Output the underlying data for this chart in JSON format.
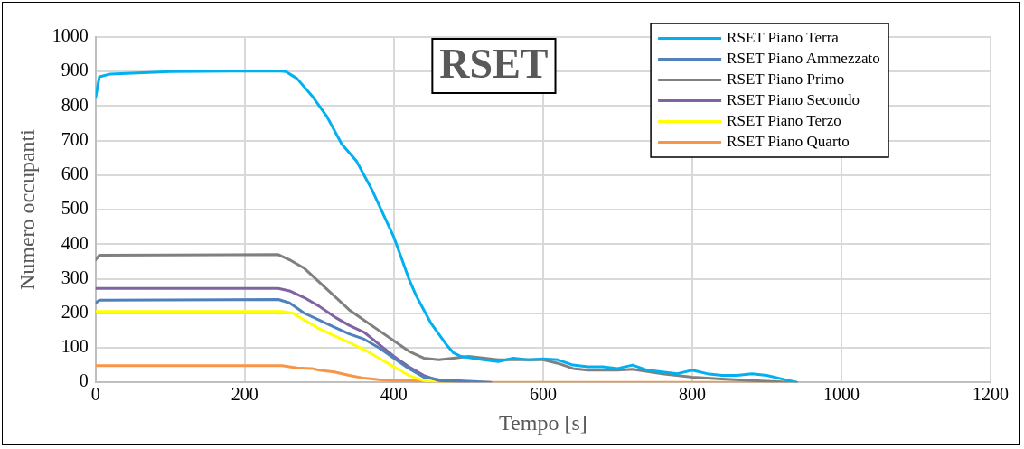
{
  "chart_data": {
    "type": "line",
    "title": "RSET",
    "xlabel": "Tempo [s]",
    "ylabel": "Numero occupanti",
    "xlim": [
      0,
      1200
    ],
    "xticks": [
      0,
      200,
      400,
      600,
      800,
      1000,
      1200
    ],
    "ylim": [
      0,
      1000
    ],
    "yticks": [
      0,
      100,
      200,
      300,
      400,
      500,
      600,
      700,
      800,
      900,
      1000
    ],
    "grid": true,
    "legend": "top right",
    "marker": "none",
    "line_style": "solid",
    "series": [
      {
        "name": "RSET Piano Terra",
        "color": "#00b0f0",
        "x": [
          0,
          5,
          20,
          100,
          245,
          255,
          270,
          290,
          310,
          330,
          350,
          370,
          385,
          400,
          410,
          420,
          430,
          440,
          450,
          460,
          470,
          480,
          490,
          500,
          520,
          540,
          560,
          580,
          600,
          620,
          640,
          660,
          680,
          700,
          720,
          740,
          760,
          780,
          800,
          820,
          840,
          860,
          880,
          900,
          920,
          940
        ],
        "values": [
          825,
          885,
          893,
          900,
          902,
          900,
          880,
          830,
          770,
          690,
          640,
          560,
          490,
          420,
          360,
          300,
          250,
          210,
          170,
          140,
          110,
          85,
          75,
          72,
          65,
          60,
          70,
          65,
          68,
          65,
          50,
          45,
          45,
          40,
          50,
          35,
          30,
          25,
          35,
          25,
          20,
          20,
          25,
          20,
          10,
          0
        ]
      },
      {
        "name": "RSET Piano Ammezzato",
        "color": "#4f81bd",
        "x": [
          0,
          5,
          245,
          260,
          280,
          300,
          320,
          340,
          360,
          380,
          400,
          420,
          440,
          460,
          500,
          530
        ],
        "values": [
          230,
          238,
          240,
          230,
          200,
          180,
          160,
          140,
          125,
          100,
          70,
          40,
          15,
          8,
          3,
          0
        ]
      },
      {
        "name": "RSET Piano Primo",
        "color": "#808080",
        "x": [
          0,
          5,
          245,
          260,
          280,
          300,
          320,
          340,
          360,
          380,
          400,
          420,
          440,
          460,
          480,
          500,
          540,
          560,
          600,
          620,
          640,
          660,
          700,
          720,
          760,
          800,
          840,
          880,
          920,
          940
        ],
        "values": [
          355,
          368,
          370,
          355,
          330,
          290,
          250,
          210,
          180,
          150,
          120,
          90,
          70,
          65,
          70,
          75,
          65,
          65,
          65,
          55,
          40,
          35,
          35,
          38,
          25,
          15,
          10,
          5,
          1,
          0
        ]
      },
      {
        "name": "RSET Piano Secondo",
        "color": "#8064a2",
        "x": [
          0,
          245,
          260,
          280,
          300,
          320,
          340,
          360,
          380,
          400,
          420,
          440,
          460,
          480,
          500
        ],
        "values": [
          272,
          272,
          265,
          245,
          220,
          190,
          165,
          145,
          110,
          75,
          45,
          20,
          5,
          2,
          0
        ]
      },
      {
        "name": "RSET Piano Terzo",
        "color": "#ffff00",
        "x": [
          0,
          250,
          265,
          280,
          300,
          320,
          340,
          360,
          380,
          400,
          420,
          440,
          460,
          480
        ],
        "values": [
          205,
          205,
          200,
          180,
          155,
          135,
          115,
          95,
          70,
          45,
          20,
          5,
          2,
          0
        ]
      },
      {
        "name": "RSET Piano Quarto",
        "color": "#f79646",
        "x": [
          0,
          250,
          270,
          290,
          300,
          320,
          340,
          360,
          380,
          400,
          420,
          450,
          480,
          940
        ],
        "values": [
          48,
          48,
          42,
          40,
          35,
          30,
          20,
          12,
          8,
          5,
          5,
          1,
          0,
          0
        ]
      }
    ]
  }
}
